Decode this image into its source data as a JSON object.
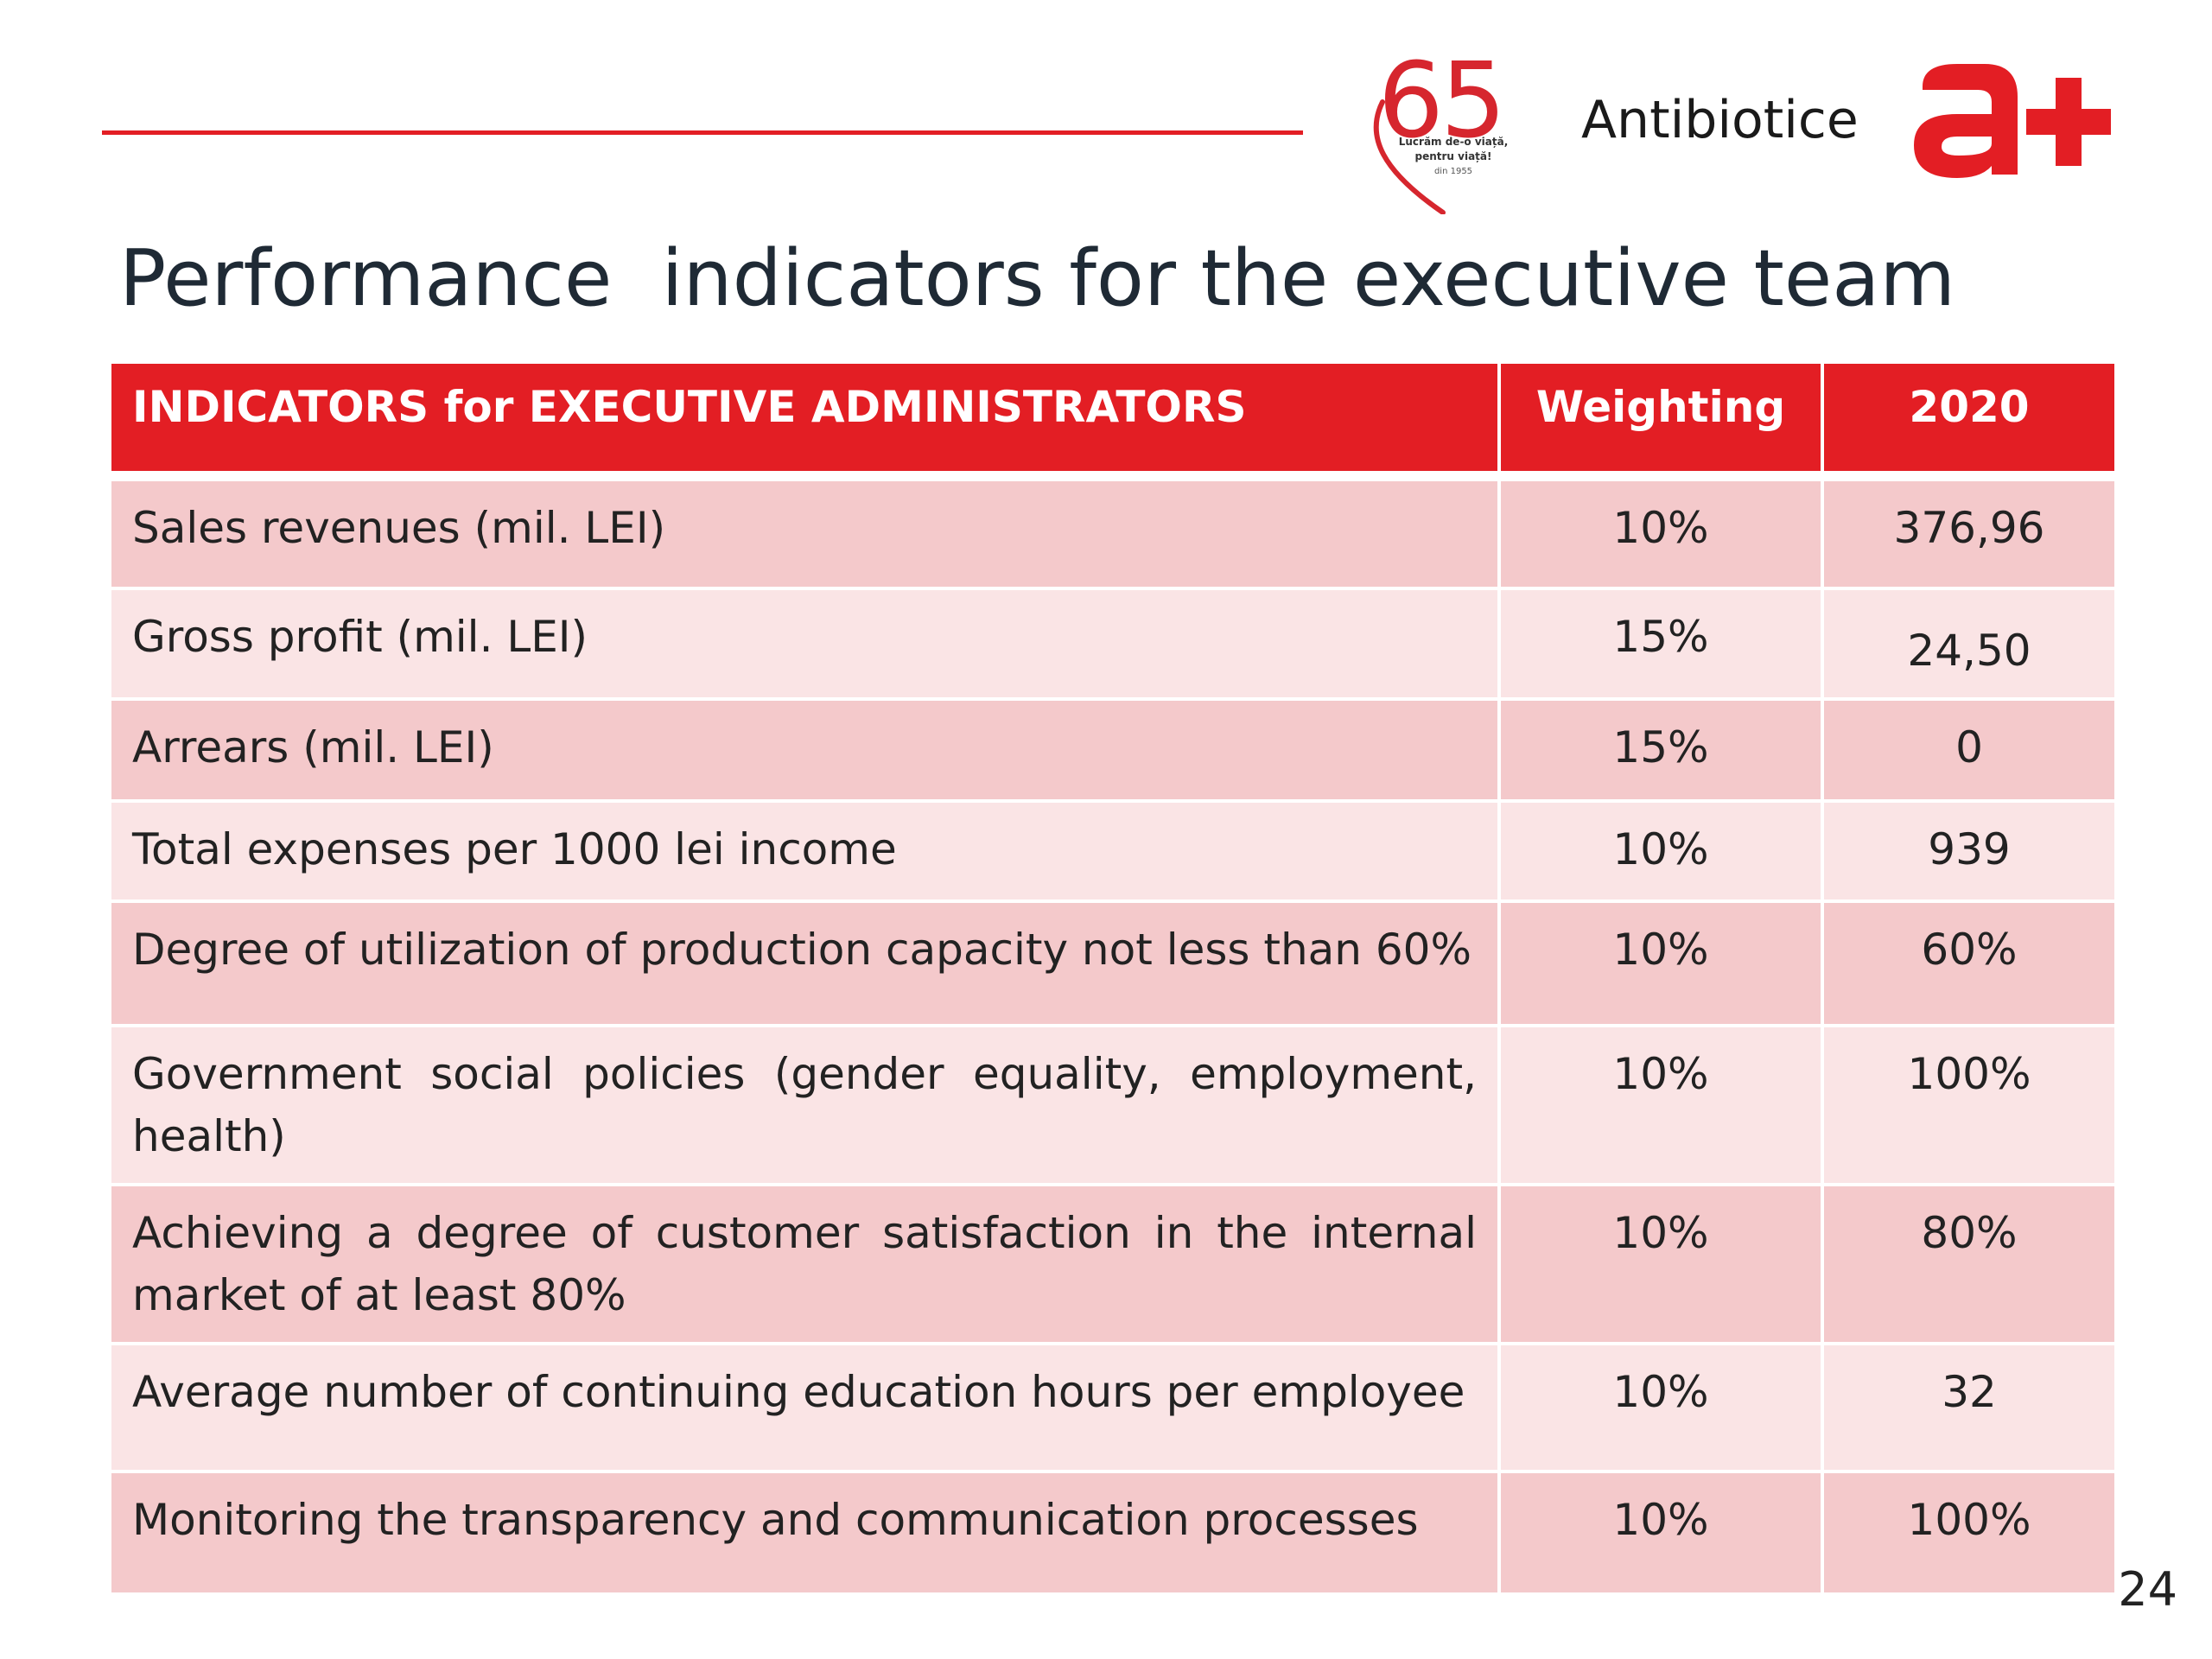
{
  "header": {
    "anniversary_logo": {
      "number": "65",
      "tagline_line1": "Lucrăm de-o viață,",
      "tagline_line2": "pentru viață!",
      "tagline_line3": "din 1955"
    },
    "company_name": "Antibiotice",
    "brand_mark": "a+",
    "accent_color": "#e31e24"
  },
  "title": "Performance  indicators for the executive team",
  "table": {
    "columns": [
      "INDICATORS for EXECUTIVE ADMINISTRATORS",
      "Weighting",
      "2020"
    ],
    "rows": [
      {
        "indicator": "Sales revenues (mil. LEI)",
        "weighting": "10%",
        "value": "376,96"
      },
      {
        "indicator": "Gross profit (mil. LEI)",
        "weighting": "15%",
        "value": "24,50"
      },
      {
        "indicator": "Arrears (mil. LEI)",
        "weighting": "15%",
        "value": "0"
      },
      {
        "indicator": "Total expenses per 1000 lei income",
        "weighting": "10%",
        "value": "939"
      },
      {
        "indicator": "Degree of utilization of production capacity not less than 60%",
        "weighting": "10%",
        "value": "60%"
      },
      {
        "indicator": "Government social policies (gender equality, employment, health)",
        "weighting": "10%",
        "value": "100%"
      },
      {
        "indicator": "Achieving a degree of customer satisfaction in the internal market of at least 80%",
        "weighting": "10%",
        "value": "80%"
      },
      {
        "indicator": "Average number of continuing education hours per employee",
        "weighting": "10%",
        "value": "32"
      },
      {
        "indicator": "Monitoring the transparency and communication processes",
        "weighting": "10%",
        "value": "100%"
      }
    ]
  },
  "page_number": "24"
}
